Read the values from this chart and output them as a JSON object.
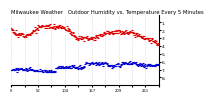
{
  "title": "Milwaukee Weather   Outdoor Humidity vs. Temperature Every 5 Minutes",
  "background_color": "#ffffff",
  "plot_bg_color": "#ffffff",
  "temp_color": "#dd0000",
  "humidity_color": "#0000cc",
  "right_yticks": [
    1,
    2,
    3,
    4,
    5,
    6,
    7,
    8
  ],
  "right_yticklabels": [
    "8.",
    "7.",
    "6.",
    "5.",
    "4.",
    "3.",
    "2.",
    "1."
  ],
  "ylim": [
    0,
    9
  ],
  "n_points": 288,
  "title_fontsize": 3.8,
  "tick_fontsize": 3.2,
  "marker_size": 1.5
}
